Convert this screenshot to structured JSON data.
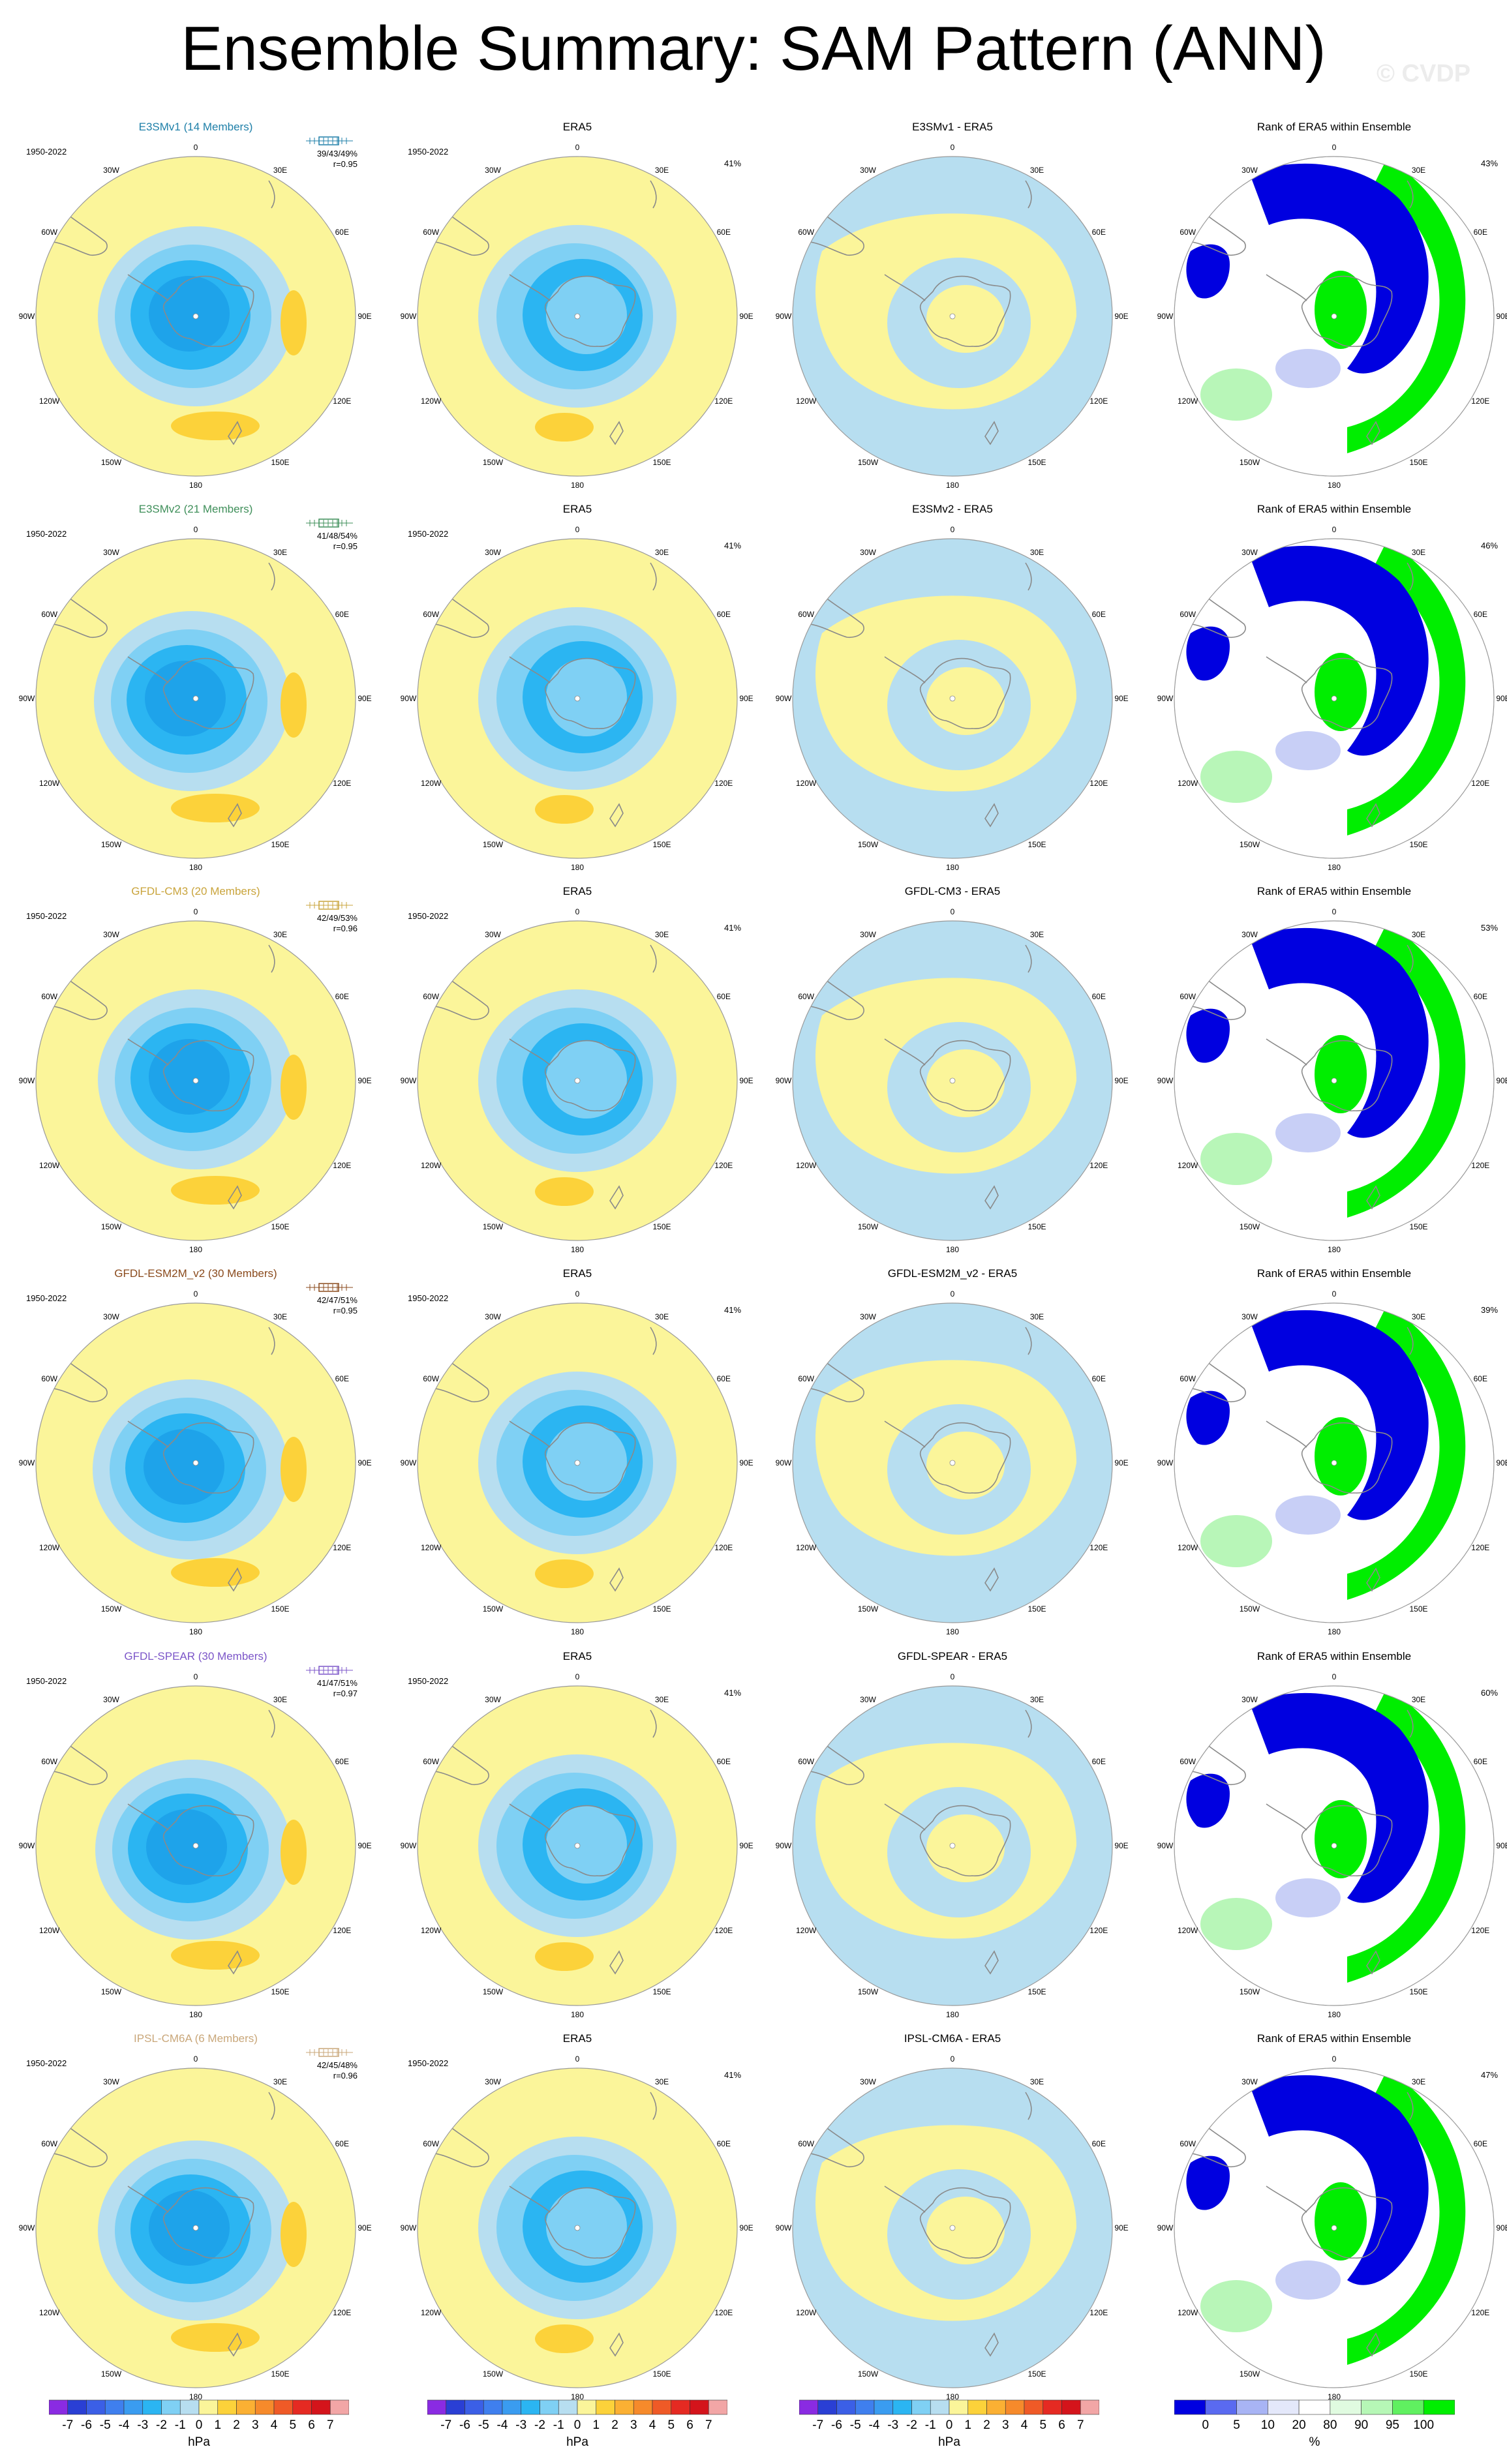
{
  "title": "Ensemble Summary: SAM Pattern (ANN)",
  "credit": "© CVDP",
  "rows": [
    {
      "model": "E3SMv1 (14 Members)",
      "model_color": "#1e7fa8",
      "period": "1950-2022",
      "stats": [
        "39/43/49%",
        "r=0.95"
      ],
      "diff_title": "E3SMv1 - ERA5",
      "rank_pct": "43%"
    },
    {
      "model": "E3SMv2 (21 Members)",
      "model_color": "#3f8f5a",
      "period": "1950-2022",
      "stats": [
        "41/48/54%",
        "r=0.95"
      ],
      "diff_title": "E3SMv2 - ERA5",
      "rank_pct": "46%"
    },
    {
      "model": "GFDL-CM3 (20 Members)",
      "model_color": "#c9a43c",
      "period": "1950-2022",
      "stats": [
        "42/49/53%",
        "r=0.96"
      ],
      "diff_title": "GFDL-CM3 - ERA5",
      "rank_pct": "53%"
    },
    {
      "model": "GFDL-ESM2M_v2 (30 Members)",
      "model_color": "#8a4a1c",
      "period": "1950-2022",
      "stats": [
        "42/47/51%",
        "r=0.95"
      ],
      "diff_title": "GFDL-ESM2M_v2 - ERA5",
      "rank_pct": "39%"
    },
    {
      "model": "GFDL-SPEAR (30 Members)",
      "model_color": "#7b55c8",
      "period": "1950-2022",
      "stats": [
        "41/47/51%",
        "r=0.97"
      ],
      "diff_title": "GFDL-SPEAR - ERA5",
      "rank_pct": "60%"
    },
    {
      "model": "IPSL-CM6A (6 Members)",
      "model_color": "#c9a77a",
      "period": "1950-2022",
      "stats": [
        "42/45/48%",
        "r=0.96"
      ],
      "diff_title": "IPSL-CM6A - ERA5",
      "rank_pct": "47%"
    }
  ],
  "obs_title": "ERA5",
  "obs_period": "1950-2022",
  "obs_pct": "41%",
  "rank_title": "Rank of ERA5 within Ensemble",
  "lon_labels": [
    "0",
    "30E",
    "60E",
    "90E",
    "120E",
    "150E",
    "180",
    "150W",
    "120W",
    "90W",
    "60W",
    "30W"
  ],
  "colorbar_hpa": {
    "ticks": [
      "-7",
      "-6",
      "-5",
      "-4",
      "-3",
      "-2",
      "-1",
      "0",
      "1",
      "2",
      "3",
      "4",
      "5",
      "6",
      "7"
    ],
    "unit": "hPa",
    "colors": [
      "#8a2be2",
      "#2a3fd4",
      "#3b5fe6",
      "#3f7fee",
      "#3a9cf0",
      "#2bb5f2",
      "#7fd0f4",
      "#b7def0",
      "#fbf59a",
      "#fcd23a",
      "#fbb033",
      "#f68a2b",
      "#ef5a27",
      "#e52a22",
      "#d4141b",
      "#f2a6a6"
    ]
  },
  "colorbar_rank": {
    "ticks": [
      "0",
      "5",
      "10",
      "20",
      "80",
      "90",
      "95",
      "100"
    ],
    "unit": "%",
    "colors": [
      "#0000e0",
      "#5a6af0",
      "#a8b4f4",
      "#e4e8fa",
      "#ffffff",
      "#e0fbe0",
      "#b6f7b6",
      "#60f060",
      "#00ee00"
    ]
  },
  "palette": {
    "neg_light": "#b7def0",
    "neg_mid": "#7fd0f4",
    "neg_strong": "#2bb5f2",
    "neg_core": "#1ea3ea",
    "pos": "#fbf59a",
    "pos_mid": "#fcd23a",
    "rank_low": "#0000e0",
    "rank_high": "#00ee00",
    "rank_lowpale": "#c8cff6",
    "rank_highpale": "#b8f6b8"
  }
}
